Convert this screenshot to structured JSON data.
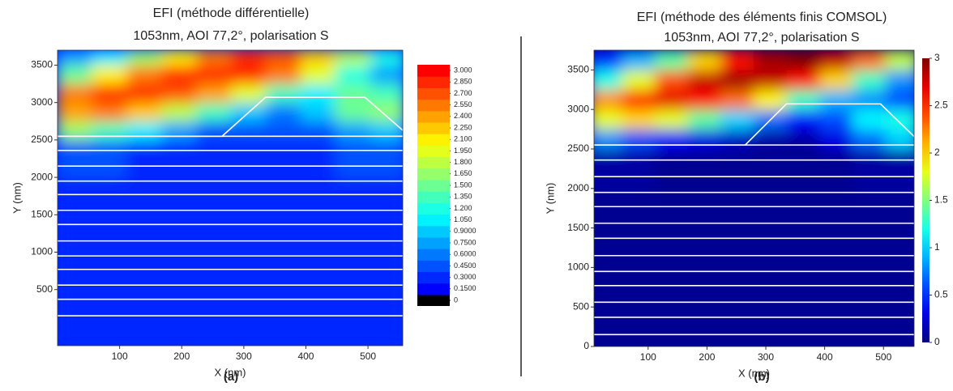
{
  "chart_data": [
    {
      "type": "heatmap",
      "title": "EFI (méthode différentielle)",
      "subtitle": "1053nm, AOI 77,2°, polarisation S",
      "x_label": "X (nm)",
      "y_label": "Y (nm)",
      "panel_label": "(a)",
      "colormap": "jet",
      "discrete": true,
      "xlim": [
        0,
        556
      ],
      "ylim": [
        -250,
        3700
      ],
      "xticks": [
        100,
        200,
        300,
        400,
        500
      ],
      "yticks": [
        500,
        1000,
        1500,
        2000,
        2500,
        3000,
        3500
      ],
      "xbins": [
        0,
        56,
        112,
        168,
        224,
        280,
        336,
        392,
        448,
        504,
        560
      ],
      "ybins": [
        -250,
        500,
        1000,
        1500,
        2000,
        2500,
        2750,
        3000,
        3250,
        3500,
        3700
      ],
      "zlim": [
        0,
        3
      ],
      "z": [
        [
          0.2,
          0.2,
          0.2,
          0.2,
          0.2,
          0.2,
          0.2,
          0.2,
          0.2,
          0.2
        ],
        [
          0.2,
          0.2,
          0.2,
          0.2,
          0.2,
          0.2,
          0.2,
          0.2,
          0.2,
          0.2
        ],
        [
          0.2,
          0.2,
          0.2,
          0.2,
          0.2,
          0.2,
          0.2,
          0.2,
          0.2,
          0.2
        ],
        [
          0.2,
          0.2,
          0.2,
          0.2,
          0.2,
          0.2,
          0.2,
          0.2,
          0.2,
          0.2
        ],
        [
          0.3,
          0.3,
          0.2,
          0.2,
          0.2,
          0.2,
          0.2,
          0.2,
          0.3,
          0.3
        ],
        [
          1.6,
          1.3,
          0.9,
          0.6,
          0.4,
          0.3,
          0.3,
          0.4,
          0.6,
          0.8
        ],
        [
          2.3,
          2.4,
          2.2,
          1.7,
          1.2,
          0.8,
          0.5,
          0.8,
          1.4,
          1.6
        ],
        [
          2.4,
          2.7,
          2.7,
          2.6,
          2.3,
          1.8,
          1.2,
          0.9,
          1.4,
          1.2
        ],
        [
          1.4,
          2.0,
          2.5,
          2.7,
          2.8,
          2.7,
          2.4,
          1.8,
          1.1,
          0.6
        ],
        [
          0.6,
          1.0,
          1.5,
          2.0,
          2.5,
          2.7,
          2.6,
          2.2,
          1.7,
          1.1
        ]
      ],
      "colorbar_ticks": [
        0,
        {
          "value": 0.15,
          "label": "0.1500"
        },
        {
          "value": 0.3,
          "label": "0.3000"
        },
        {
          "value": 0.45,
          "label": "0.4500"
        },
        {
          "value": 0.6,
          "label": "0.6000"
        },
        {
          "value": 0.75,
          "label": "0.7500"
        },
        {
          "value": 0.9,
          "label": "0.9000"
        },
        {
          "value": 1.05,
          "label": "1.050"
        },
        {
          "value": 1.2,
          "label": "1.200"
        },
        {
          "value": 1.35,
          "label": "1.350"
        },
        {
          "value": 1.5,
          "label": "1.500"
        },
        {
          "value": 1.65,
          "label": "1.650"
        },
        {
          "value": 1.8,
          "label": "1.800"
        },
        {
          "value": 1.95,
          "label": "1.950"
        },
        {
          "value": 2.1,
          "label": "2.100"
        },
        {
          "value": 2.25,
          "label": "2.250"
        },
        {
          "value": 2.4,
          "label": "2.400"
        },
        {
          "value": 2.55,
          "label": "2.550"
        },
        {
          "value": 2.7,
          "label": "2.700"
        },
        {
          "value": 2.85,
          "label": "2.850"
        },
        {
          "value": 3,
          "label": "3.000"
        }
      ]
    },
    {
      "type": "heatmap",
      "title": "EFI (méthode des éléments finis COMSOL)",
      "subtitle": "1053nm, AOI 77,2°, polarisation S",
      "x_label": "X (nm)",
      "y_label": "Y (nm)",
      "panel_label": "(b)",
      "colormap": "jet",
      "discrete": false,
      "xlim": [
        8,
        552
      ],
      "ylim": [
        0,
        3750
      ],
      "xticks": [
        100,
        200,
        300,
        400,
        500
      ],
      "yticks": [
        0,
        500,
        1000,
        1500,
        2000,
        2500,
        3000,
        3500
      ],
      "xbins": [
        0,
        56,
        112,
        168,
        224,
        280,
        336,
        392,
        448,
        504,
        560
      ],
      "ybins": [
        0,
        500,
        1000,
        1500,
        2000,
        2500,
        2750,
        3000,
        3250,
        3500,
        3750
      ],
      "zlim": [
        0,
        3
      ],
      "z": [
        [
          0.05,
          0.05,
          0.05,
          0.05,
          0.05,
          0.05,
          0.05,
          0.05,
          0.05,
          0.05
        ],
        [
          0.05,
          0.05,
          0.05,
          0.05,
          0.05,
          0.05,
          0.05,
          0.05,
          0.05,
          0.05
        ],
        [
          0.05,
          0.05,
          0.05,
          0.05,
          0.05,
          0.05,
          0.05,
          0.05,
          0.05,
          0.05
        ],
        [
          0.05,
          0.05,
          0.05,
          0.05,
          0.05,
          0.05,
          0.05,
          0.05,
          0.05,
          0.05
        ],
        [
          0.1,
          0.1,
          0.05,
          0.05,
          0.05,
          0.05,
          0.05,
          0.05,
          0.1,
          0.1
        ],
        [
          0.8,
          0.6,
          0.4,
          0.3,
          0.2,
          0.1,
          0.1,
          0.3,
          0.7,
          1.0
        ],
        [
          1.8,
          2.0,
          1.8,
          1.4,
          1.0,
          0.7,
          0.4,
          0.6,
          1.1,
          1.2
        ],
        [
          2.2,
          2.6,
          2.7,
          2.6,
          2.3,
          1.9,
          1.3,
          0.9,
          0.8,
          0.6
        ],
        [
          1.2,
          1.8,
          2.4,
          2.8,
          2.9,
          2.8,
          2.6,
          2.0,
          1.3,
          0.8
        ],
        [
          0.5,
          0.9,
          1.4,
          2.0,
          2.6,
          2.9,
          3.0,
          2.8,
          2.3,
          1.7
        ]
      ],
      "colorbar_ticks": [
        0,
        0.5,
        1,
        1.5,
        2,
        2.5,
        3
      ]
    }
  ]
}
